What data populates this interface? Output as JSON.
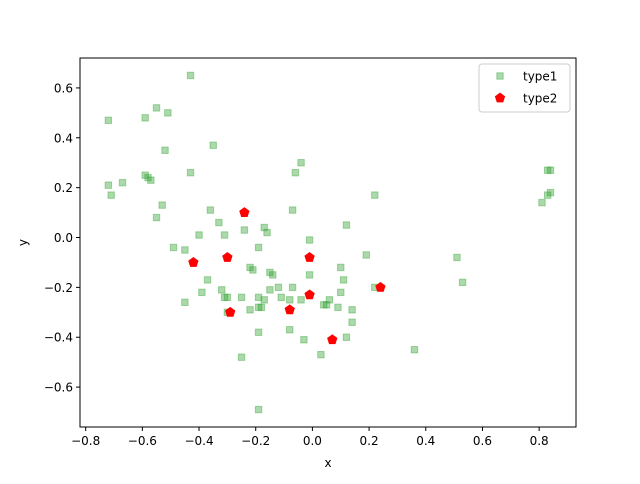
{
  "chart_data": {
    "type": "scatter",
    "xlabel": "x",
    "ylabel": "y",
    "xlim": [
      -0.82,
      0.93
    ],
    "ylim": [
      -0.76,
      0.72
    ],
    "xticks": [
      -0.8,
      -0.6,
      -0.4,
      -0.2,
      0.0,
      0.2,
      0.4,
      0.6,
      0.8
    ],
    "xtick_labels": [
      "−0.8",
      "−0.6",
      "−0.4",
      "−0.2",
      "0.0",
      "0.2",
      "0.4",
      "0.6",
      "0.8"
    ],
    "yticks": [
      -0.6,
      -0.4,
      -0.2,
      0.0,
      0.2,
      0.4,
      0.6
    ],
    "ytick_labels": [
      "−0.6",
      "−0.4",
      "−0.2",
      "0.0",
      "0.2",
      "0.4",
      "0.6"
    ],
    "grid": false,
    "legend_position": "top-right",
    "series": [
      {
        "name": "type1",
        "color": "#2ca02c",
        "marker": "square",
        "points": [
          [
            -0.43,
            0.65
          ],
          [
            -0.72,
            0.47
          ],
          [
            -0.55,
            0.52
          ],
          [
            -0.51,
            0.5
          ],
          [
            -0.59,
            0.48
          ],
          [
            -0.35,
            0.37
          ],
          [
            -0.52,
            0.35
          ],
          [
            -0.04,
            0.3
          ],
          [
            -0.43,
            0.26
          ],
          [
            -0.06,
            0.26
          ],
          [
            -0.59,
            0.25
          ],
          [
            -0.58,
            0.24
          ],
          [
            -0.57,
            0.23
          ],
          [
            -0.67,
            0.22
          ],
          [
            -0.72,
            0.21
          ],
          [
            -0.71,
            0.17
          ],
          [
            0.22,
            0.17
          ],
          [
            -0.53,
            0.13
          ],
          [
            -0.36,
            0.11
          ],
          [
            -0.07,
            0.11
          ],
          [
            -0.55,
            0.08
          ],
          [
            -0.33,
            0.06
          ],
          [
            0.12,
            0.05
          ],
          [
            -0.17,
            0.04
          ],
          [
            -0.24,
            0.03
          ],
          [
            -0.16,
            0.02
          ],
          [
            -0.31,
            0.01
          ],
          [
            -0.4,
            0.01
          ],
          [
            -0.01,
            -0.01
          ],
          [
            -0.49,
            -0.04
          ],
          [
            -0.19,
            -0.04
          ],
          [
            -0.45,
            -0.05
          ],
          [
            0.19,
            -0.07
          ],
          [
            0.51,
            -0.08
          ],
          [
            -0.22,
            -0.12
          ],
          [
            -0.21,
            -0.13
          ],
          [
            0.1,
            -0.12
          ],
          [
            -0.15,
            -0.14
          ],
          [
            -0.14,
            -0.15
          ],
          [
            -0.01,
            -0.15
          ],
          [
            -0.37,
            -0.17
          ],
          [
            0.11,
            -0.17
          ],
          [
            0.53,
            -0.18
          ],
          [
            0.22,
            -0.2
          ],
          [
            -0.12,
            -0.2
          ],
          [
            -0.07,
            -0.2
          ],
          [
            -0.15,
            -0.21
          ],
          [
            -0.32,
            -0.21
          ],
          [
            -0.39,
            -0.22
          ],
          [
            -0.3,
            -0.24
          ],
          [
            0.1,
            -0.22
          ],
          [
            -0.11,
            -0.24
          ],
          [
            -0.25,
            -0.24
          ],
          [
            -0.31,
            -0.24
          ],
          [
            -0.19,
            -0.24
          ],
          [
            -0.17,
            -0.25
          ],
          [
            -0.08,
            -0.25
          ],
          [
            -0.04,
            -0.25
          ],
          [
            -0.45,
            -0.26
          ],
          [
            0.06,
            -0.25
          ],
          [
            0.05,
            -0.27
          ],
          [
            0.04,
            -0.27
          ],
          [
            0.09,
            -0.28
          ],
          [
            -0.19,
            -0.28
          ],
          [
            -0.18,
            -0.28
          ],
          [
            -0.22,
            -0.29
          ],
          [
            0.14,
            -0.29
          ],
          [
            -0.3,
            -0.3
          ],
          [
            0.14,
            -0.34
          ],
          [
            -0.08,
            -0.37
          ],
          [
            -0.19,
            -0.38
          ],
          [
            0.12,
            -0.4
          ],
          [
            -0.03,
            -0.41
          ],
          [
            0.36,
            -0.45
          ],
          [
            0.03,
            -0.47
          ],
          [
            -0.25,
            -0.48
          ],
          [
            -0.19,
            -0.69
          ],
          [
            0.84,
            0.27
          ],
          [
            0.83,
            0.27
          ],
          [
            0.83,
            0.17
          ],
          [
            0.84,
            0.18
          ],
          [
            0.81,
            0.14
          ]
        ]
      },
      {
        "name": "type2",
        "color": "#ff0000",
        "marker": "pentagon",
        "points": [
          [
            -0.24,
            0.1
          ],
          [
            -0.42,
            -0.1
          ],
          [
            -0.3,
            -0.08
          ],
          [
            -0.01,
            -0.08
          ],
          [
            0.24,
            -0.2
          ],
          [
            -0.01,
            -0.23
          ],
          [
            -0.08,
            -0.29
          ],
          [
            -0.29,
            -0.3
          ],
          [
            0.07,
            -0.41
          ]
        ]
      }
    ]
  }
}
